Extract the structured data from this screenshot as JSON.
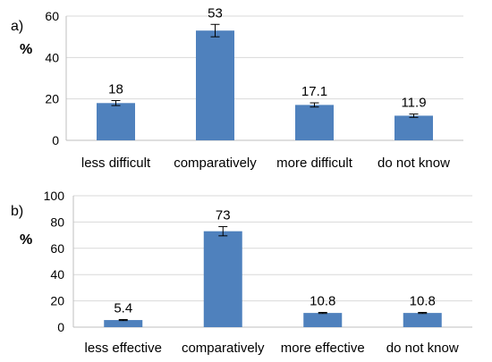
{
  "colors": {
    "bar": "#4f81bd",
    "grid": "#d9d9d9",
    "axis": "#bfbfbf"
  },
  "chart_data": [
    {
      "type": "bar",
      "panel_label": "a)",
      "unit_label": "%",
      "categories": [
        "less difficult",
        "comparatively",
        "more difficult",
        "do not know"
      ],
      "values": [
        18,
        53,
        17.1,
        11.9
      ],
      "value_labels": [
        "18",
        "53",
        "17.1",
        "11.9"
      ],
      "error": [
        1.2,
        3.0,
        1.0,
        0.8
      ],
      "ylim": [
        0,
        60
      ],
      "yticks": [
        0,
        20,
        40,
        60
      ],
      "grid": true
    },
    {
      "type": "bar",
      "panel_label": "b)",
      "unit_label": "%",
      "categories": [
        "less effective",
        "comparatively",
        "more effective",
        "do not know"
      ],
      "values": [
        5.4,
        73,
        10.8,
        10.8
      ],
      "value_labels": [
        "5.4",
        "73",
        "10.8",
        "10.8"
      ],
      "error": [
        0.4,
        3.5,
        0.4,
        0.4
      ],
      "ylim": [
        0,
        100
      ],
      "yticks": [
        0,
        20,
        40,
        60,
        80,
        100
      ],
      "grid": true
    }
  ]
}
